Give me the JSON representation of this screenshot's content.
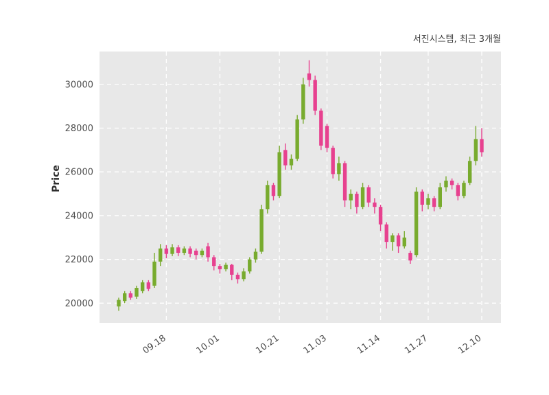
{
  "header": {
    "title": "서진시스템, 최근 3개월"
  },
  "chart_data": {
    "type": "candlestick",
    "title": "서진시스템, 최근 3개월",
    "ylabel": "Price",
    "xlabel": "",
    "ylim": [
      19100,
      31500
    ],
    "y_ticks": [
      20000,
      22000,
      24000,
      26000,
      28000,
      30000
    ],
    "x_tick_labels": [
      "09.18",
      "10.01",
      "10.21",
      "11.03",
      "11.14",
      "11.27",
      "12.10"
    ],
    "x_tick_indices": [
      8,
      17,
      27,
      35,
      44,
      52,
      61
    ],
    "grid": true,
    "legend_position": "none",
    "up_color": "#78ab2e",
    "down_color": "#e7418f",
    "plot_bg": "#e8e8e8",
    "grid_color": "#ffffff",
    "tick_color": "#4d4d4d",
    "candles_ohlc": [
      [
        19850,
        20250,
        19650,
        20150
      ],
      [
        20100,
        20550,
        20000,
        20450
      ],
      [
        20450,
        20550,
        20150,
        20250
      ],
      [
        20300,
        20800,
        20200,
        20700
      ],
      [
        20550,
        21050,
        20450,
        20950
      ],
      [
        20950,
        21050,
        20550,
        20650
      ],
      [
        20800,
        22300,
        20700,
        21900
      ],
      [
        21900,
        22700,
        21700,
        22500
      ],
      [
        22500,
        22650,
        22050,
        22250
      ],
      [
        22250,
        22700,
        22150,
        22550
      ],
      [
        22550,
        22650,
        22150,
        22300
      ],
      [
        22300,
        22600,
        22200,
        22500
      ],
      [
        22500,
        22600,
        22100,
        22250
      ],
      [
        22400,
        22500,
        22000,
        22200
      ],
      [
        22200,
        22500,
        22100,
        22400
      ],
      [
        22600,
        22750,
        21900,
        22100
      ],
      [
        22100,
        22200,
        21500,
        21700
      ],
      [
        21700,
        21800,
        21350,
        21550
      ],
      [
        21550,
        21850,
        21450,
        21750
      ],
      [
        21750,
        21800,
        21050,
        21300
      ],
      [
        21300,
        21400,
        20900,
        21100
      ],
      [
        21100,
        21600,
        21000,
        21450
      ],
      [
        21450,
        22100,
        21350,
        22000
      ],
      [
        22000,
        22500,
        21850,
        22350
      ],
      [
        22350,
        24500,
        22250,
        24300
      ],
      [
        24300,
        25600,
        24100,
        25400
      ],
      [
        25400,
        25500,
        24700,
        24900
      ],
      [
        24900,
        27200,
        24800,
        26900
      ],
      [
        27000,
        27300,
        26100,
        26300
      ],
      [
        26300,
        26800,
        26100,
        26600
      ],
      [
        26600,
        28600,
        26500,
        28400
      ],
      [
        28400,
        30300,
        28200,
        30000
      ],
      [
        30500,
        31100,
        29900,
        30200
      ],
      [
        30200,
        30400,
        28600,
        28800
      ],
      [
        28800,
        28900,
        27000,
        27200
      ],
      [
        28100,
        28200,
        26900,
        27100
      ],
      [
        27100,
        27200,
        25700,
        25900
      ],
      [
        25900,
        26700,
        25600,
        26400
      ],
      [
        26400,
        26500,
        24400,
        24700
      ],
      [
        24700,
        25200,
        24300,
        25000
      ],
      [
        25000,
        25100,
        24100,
        24400
      ],
      [
        24400,
        25500,
        24300,
        25300
      ],
      [
        25300,
        25400,
        24400,
        24600
      ],
      [
        24600,
        24800,
        24100,
        24400
      ],
      [
        24400,
        24500,
        23300,
        23600
      ],
      [
        23600,
        23700,
        22500,
        22800
      ],
      [
        22800,
        23200,
        22400,
        23100
      ],
      [
        23100,
        23200,
        22300,
        22600
      ],
      [
        22600,
        23300,
        22500,
        23000
      ],
      [
        22300,
        22400,
        21800,
        21950
      ],
      [
        22200,
        25300,
        22100,
        25100
      ],
      [
        25100,
        25200,
        24200,
        24500
      ],
      [
        24500,
        25000,
        24300,
        24800
      ],
      [
        24800,
        24900,
        24200,
        24400
      ],
      [
        24400,
        25500,
        24300,
        25300
      ],
      [
        25300,
        25800,
        25100,
        25600
      ],
      [
        25600,
        25700,
        25200,
        25400
      ],
      [
        25400,
        25500,
        24700,
        24900
      ],
      [
        24900,
        25600,
        24800,
        25500
      ],
      [
        25500,
        26700,
        25400,
        26500
      ],
      [
        26500,
        28100,
        26300,
        27500
      ],
      [
        27500,
        28000,
        26700,
        26900
      ]
    ]
  }
}
